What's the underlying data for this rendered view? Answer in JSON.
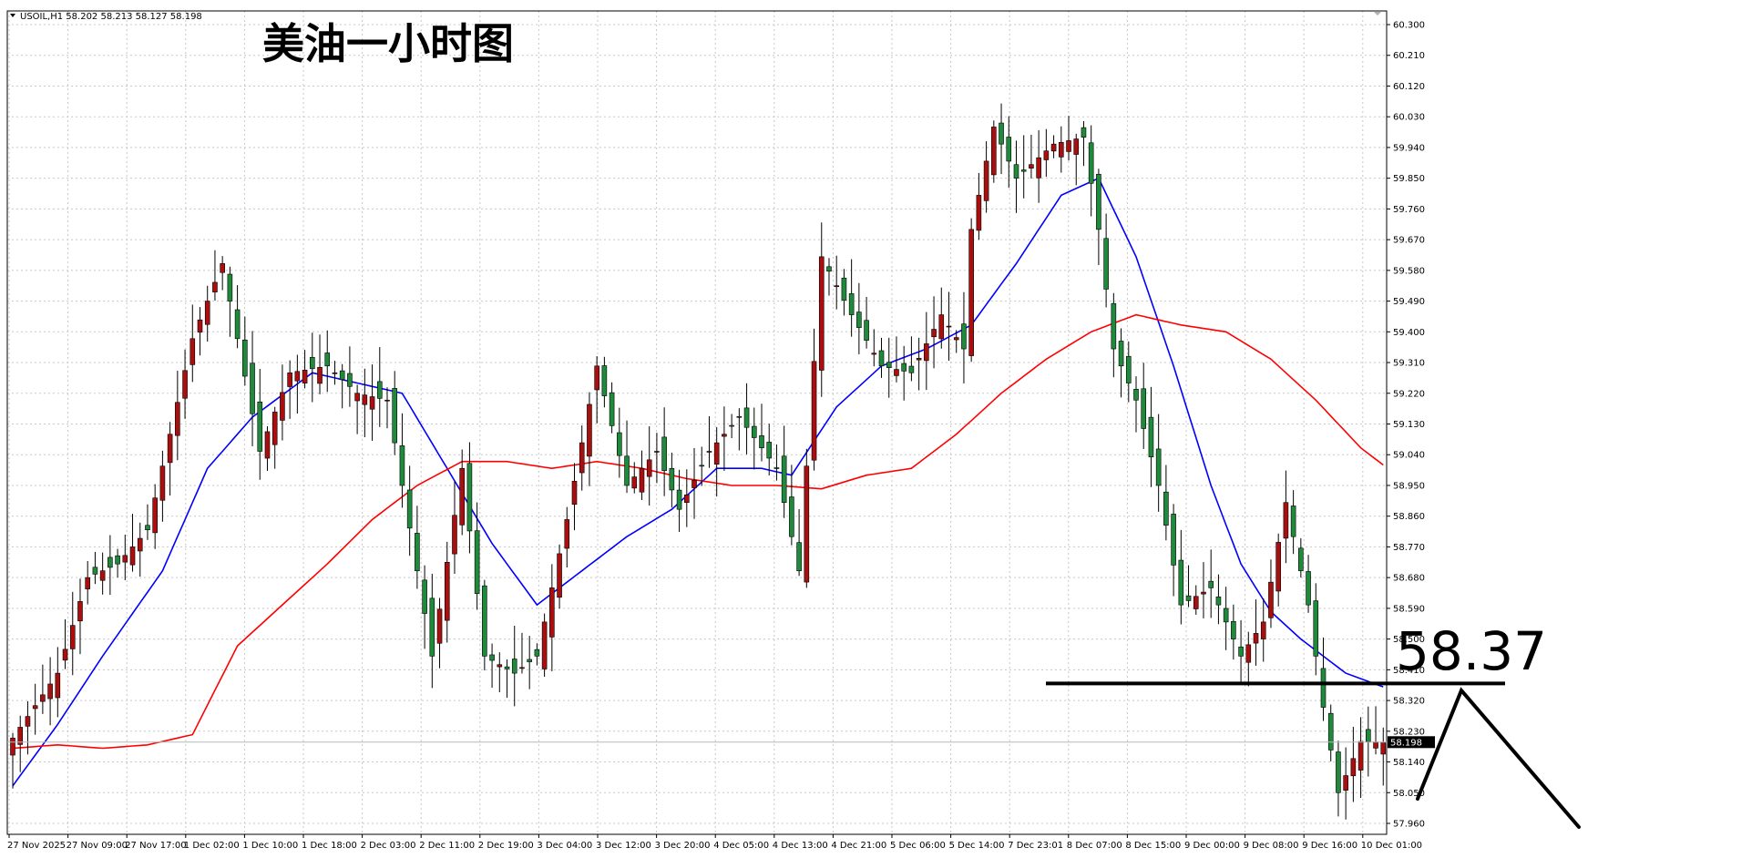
{
  "header": {
    "symbol_info": "USOIL,H1  58.202 58.213 58.127 58.198",
    "title_annotation": "美油一小时图"
  },
  "annotations": {
    "level_label": "58.37",
    "level_price": 58.37,
    "current_price_label": "58.198",
    "current_price": 58.198
  },
  "colors": {
    "bull": "#a90f0f",
    "bear": "#1f8a3c",
    "ma_fast": "#0000ff",
    "ma_slow": "#ff0000",
    "grid": "#c8c8c8",
    "annotation": "#000000"
  },
  "chart_data": {
    "type": "candlestick",
    "ylim": [
      57.96,
      60.3
    ],
    "y_ticks": [
      "60.300",
      "60.210",
      "60.120",
      "60.030",
      "59.940",
      "59.850",
      "59.760",
      "59.670",
      "59.580",
      "59.490",
      "59.400",
      "59.310",
      "59.220",
      "59.130",
      "59.040",
      "58.950",
      "58.860",
      "58.770",
      "58.680",
      "58.590",
      "58.500",
      "58.410",
      "58.320",
      "58.230",
      "58.140",
      "58.050",
      "57.960"
    ],
    "x_ticks": [
      "27 Nov 2025",
      "27 Nov 09:00",
      "27 Nov 17:00",
      "1 Dec 02:00",
      "1 Dec 10:00",
      "1 Dec 18:00",
      "2 Dec 03:00",
      "2 Dec 11:00",
      "2 Dec 19:00",
      "3 Dec 04:00",
      "3 Dec 12:00",
      "3 Dec 20:00",
      "4 Dec 05:00",
      "4 Dec 13:00",
      "4 Dec 21:00",
      "5 Dec 06:00",
      "5 Dec 14:00",
      "7 Dec 23:01",
      "8 Dec 07:00",
      "8 Dec 15:00",
      "9 Dec 00:00",
      "9 Dec 08:00",
      "9 Dec 16:00",
      "10 Dec 01:00"
    ],
    "candle_count": 184,
    "anchors_close": [
      [
        0,
        58.21
      ],
      [
        6,
        58.4
      ],
      [
        10,
        58.68
      ],
      [
        14,
        58.72
      ],
      [
        18,
        58.82
      ],
      [
        24,
        59.38
      ],
      [
        28,
        59.6
      ],
      [
        33,
        59.05
      ],
      [
        37,
        59.28
      ],
      [
        42,
        59.3
      ],
      [
        46,
        59.22
      ],
      [
        50,
        59.2
      ],
      [
        56,
        58.45
      ],
      [
        60,
        59.0
      ],
      [
        63,
        58.45
      ],
      [
        67,
        58.4
      ],
      [
        70,
        58.45
      ],
      [
        74,
        58.85
      ],
      [
        78,
        59.3
      ],
      [
        82,
        58.95
      ],
      [
        86,
        59.05
      ],
      [
        89,
        58.88
      ],
      [
        93,
        59.05
      ],
      [
        97,
        59.15
      ],
      [
        102,
        59.0
      ],
      [
        105,
        58.7
      ],
      [
        108,
        59.62
      ],
      [
        112,
        59.45
      ],
      [
        116,
        59.3
      ],
      [
        120,
        59.28
      ],
      [
        124,
        59.45
      ],
      [
        127,
        59.35
      ],
      [
        128,
        59.7
      ],
      [
        131,
        60.0
      ],
      [
        134,
        59.85
      ],
      [
        139,
        59.95
      ],
      [
        143,
        59.97
      ],
      [
        145,
        59.7
      ],
      [
        147,
        59.35
      ],
      [
        150,
        59.2
      ],
      [
        153,
        58.95
      ],
      [
        156,
        58.6
      ],
      [
        160,
        58.65
      ],
      [
        164,
        58.45
      ],
      [
        167,
        58.55
      ],
      [
        170,
        58.9
      ],
      [
        173,
        58.6
      ],
      [
        175,
        58.3
      ],
      [
        177,
        58.05
      ],
      [
        180,
        58.2
      ],
      [
        183,
        58.198
      ]
    ],
    "series": [
      {
        "type": "line",
        "anchors": [
          [
            0,
            58.07
          ],
          [
            6,
            58.25
          ],
          [
            12,
            58.45
          ],
          [
            20,
            58.7
          ],
          [
            26,
            59.0
          ],
          [
            32,
            59.15
          ],
          [
            40,
            59.28
          ],
          [
            46,
            59.25
          ],
          [
            52,
            59.22
          ],
          [
            58,
            59.0
          ],
          [
            64,
            58.78
          ],
          [
            70,
            58.6
          ],
          [
            76,
            58.7
          ],
          [
            82,
            58.8
          ],
          [
            88,
            58.88
          ],
          [
            94,
            59.0
          ],
          [
            100,
            59.0
          ],
          [
            104,
            58.98
          ],
          [
            110,
            59.18
          ],
          [
            116,
            59.3
          ],
          [
            122,
            59.35
          ],
          [
            128,
            59.42
          ],
          [
            134,
            59.6
          ],
          [
            140,
            59.8
          ],
          [
            145,
            59.85
          ],
          [
            150,
            59.62
          ],
          [
            155,
            59.3
          ],
          [
            160,
            58.95
          ],
          [
            164,
            58.72
          ],
          [
            168,
            58.58
          ],
          [
            172,
            58.5
          ],
          [
            178,
            58.4
          ],
          [
            183,
            58.36
          ]
        ]
      },
      {
        "type": "line",
        "anchors": [
          [
            0,
            58.18
          ],
          [
            6,
            58.19
          ],
          [
            12,
            58.18
          ],
          [
            18,
            58.19
          ],
          [
            24,
            58.22
          ],
          [
            30,
            58.48
          ],
          [
            36,
            58.6
          ],
          [
            42,
            58.72
          ],
          [
            48,
            58.85
          ],
          [
            54,
            58.95
          ],
          [
            60,
            59.02
          ],
          [
            66,
            59.02
          ],
          [
            72,
            59.0
          ],
          [
            78,
            59.02
          ],
          [
            84,
            59.0
          ],
          [
            90,
            58.97
          ],
          [
            96,
            58.95
          ],
          [
            102,
            58.95
          ],
          [
            108,
            58.94
          ],
          [
            114,
            58.98
          ],
          [
            120,
            59.0
          ],
          [
            126,
            59.1
          ],
          [
            132,
            59.22
          ],
          [
            138,
            59.32
          ],
          [
            144,
            59.4
          ],
          [
            150,
            59.45
          ],
          [
            156,
            59.42
          ],
          [
            162,
            59.4
          ],
          [
            168,
            59.32
          ],
          [
            174,
            59.2
          ],
          [
            180,
            59.06
          ],
          [
            183,
            59.01
          ]
        ]
      }
    ]
  }
}
